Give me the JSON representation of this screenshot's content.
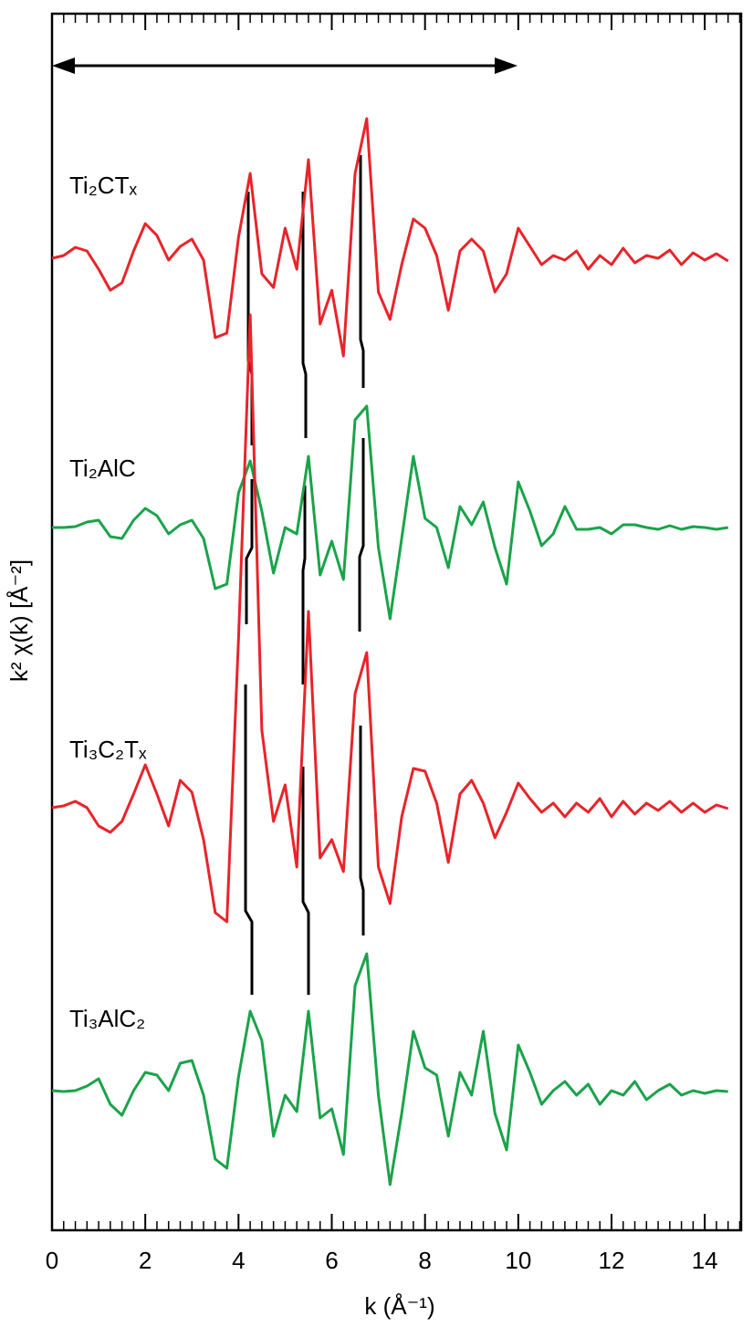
{
  "chart_data": {
    "type": "line",
    "x_label": "k (Å⁻¹)",
    "y_label": "k² χ(k) [Å⁻²]",
    "x": [
      0,
      0.25,
      0.5,
      0.75,
      1,
      1.25,
      1.5,
      1.75,
      2,
      2.25,
      2.5,
      2.75,
      3,
      3.25,
      3.5,
      3.75,
      4,
      4.25,
      4.5,
      4.75,
      5,
      5.25,
      5.5,
      5.75,
      6,
      6.25,
      6.5,
      6.75,
      7,
      7.25,
      7.5,
      7.75,
      8,
      8.25,
      8.5,
      8.75,
      9,
      9.25,
      9.5,
      9.75,
      10,
      10.25,
      10.5,
      10.75,
      11,
      11.25,
      11.5,
      11.75,
      12,
      12.25,
      12.5,
      12.75,
      13,
      13.25,
      13.5,
      13.75,
      14,
      14.25,
      14.5
    ],
    "series": [
      {
        "name": "Ti₂CTₓ",
        "color": "#e8242a",
        "values": [
          1065,
          1068,
          1077,
          1073,
          1053,
          1030,
          1038,
          1073,
          1103,
          1090,
          1063,
          1078,
          1086,
          1063,
          978,
          983,
          1088,
          1158,
          1048,
          1033,
          1098,
          1053,
          1173,
          993,
          1030,
          958,
          1158,
          1218,
          1028,
          998,
          1058,
          1108,
          1098,
          1068,
          1008,
          1073,
          1086,
          1073,
          1028,
          1048,
          1098,
          1078,
          1058,
          1068,
          1063,
          1073,
          1053,
          1068,
          1058,
          1076,
          1060,
          1068,
          1065,
          1074,
          1058,
          1071,
          1063,
          1070,
          1062
        ]
      },
      {
        "name": "Ti₂AlC",
        "color": "#1aa34a",
        "values": [
          770,
          770,
          771,
          776,
          778,
          760,
          758,
          778,
          791,
          783,
          763,
          773,
          778,
          758,
          703,
          708,
          808,
          843,
          788,
          720,
          770,
          763,
          848,
          718,
          755,
          713,
          888,
          903,
          748,
          670,
          758,
          848,
          780,
          770,
          726,
          793,
          773,
          798,
          748,
          708,
          820,
          788,
          750,
          763,
          793,
          768,
          768,
          770,
          763,
          773,
          773,
          770,
          768,
          772,
          768,
          771,
          770,
          768,
          770
        ]
      },
      {
        "name": "Ti₃C₂Tₓ",
        "color": "#e8242a",
        "values": [
          463,
          465,
          470,
          463,
          443,
          436,
          448,
          478,
          510,
          478,
          443,
          493,
          480,
          428,
          348,
          338,
          648,
          1003,
          548,
          448,
          488,
          398,
          678,
          408,
          428,
          393,
          588,
          633,
          398,
          358,
          453,
          506,
          503,
          468,
          403,
          478,
          493,
          468,
          430,
          458,
          490,
          473,
          458,
          468,
          453,
          468,
          458,
          473,
          453,
          470,
          456,
          468,
          460,
          470,
          458,
          468,
          458,
          466,
          462
        ]
      },
      {
        "name": "Ti₃AlC₂",
        "color": "#1aa34a",
        "values": [
          153,
          152,
          153,
          158,
          166,
          138,
          126,
          153,
          173,
          170,
          153,
          183,
          186,
          148,
          78,
          68,
          168,
          240,
          208,
          103,
          148,
          130,
          240,
          123,
          133,
          83,
          268,
          303,
          148,
          50,
          128,
          218,
          178,
          170,
          103,
          173,
          148,
          218,
          128,
          88,
          203,
          173,
          138,
          153,
          163,
          148,
          160,
          138,
          153,
          148,
          163,
          143,
          153,
          160,
          148,
          153,
          150,
          153,
          152
        ]
      }
    ],
    "xlim": [
      0,
      14.78
    ],
    "xticks": [
      0,
      2,
      4,
      6,
      8,
      10,
      12,
      14
    ],
    "ylim": [
      0,
      1333
    ]
  }
}
